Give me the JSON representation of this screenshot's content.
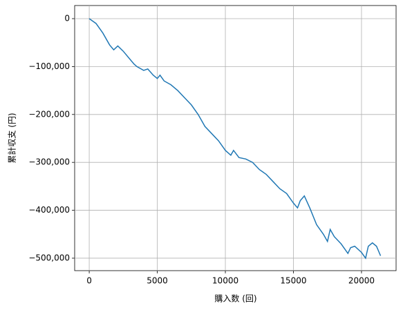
{
  "chart_data": {
    "type": "line",
    "xlabel": "購入数 (回)",
    "ylabel": "累計収支 (円)",
    "x": [
      0,
      500,
      1000,
      1500,
      1800,
      2100,
      2500,
      3000,
      3300,
      3500,
      4000,
      4300,
      4700,
      5000,
      5200,
      5500,
      6000,
      6500,
      7000,
      7500,
      8000,
      8500,
      9000,
      9500,
      10000,
      10400,
      10600,
      11000,
      11500,
      12000,
      12500,
      13000,
      13500,
      14000,
      14500,
      15000,
      15300,
      15500,
      15800,
      16200,
      16700,
      17200,
      17500,
      17700,
      18000,
      18500,
      19000,
      19200,
      19500,
      20000,
      20300,
      20500,
      20800,
      21100,
      21400
    ],
    "values": [
      0,
      -10000,
      -30000,
      -55000,
      -65000,
      -57000,
      -68000,
      -85000,
      -95000,
      -100000,
      -108000,
      -105000,
      -118000,
      -125000,
      -118000,
      -130000,
      -138000,
      -150000,
      -165000,
      -180000,
      -200000,
      -225000,
      -240000,
      -255000,
      -275000,
      -285000,
      -275000,
      -290000,
      -293000,
      -300000,
      -315000,
      -325000,
      -340000,
      -355000,
      -365000,
      -385000,
      -395000,
      -380000,
      -370000,
      -395000,
      -430000,
      -450000,
      -465000,
      -440000,
      -455000,
      -470000,
      -490000,
      -478000,
      -475000,
      -488000,
      -500000,
      -475000,
      -468000,
      -475000,
      -495000
    ],
    "color": "#1f77b4",
    "xlim": [
      -1070,
      22540
    ],
    "ylim": [
      -526000,
      27400
    ],
    "xticks": [
      0,
      5000,
      10000,
      15000,
      20000
    ],
    "yticks": [
      0,
      {
        "value": -100000,
        "label": "−100,000"
      },
      {
        "value": -200000,
        "label": "−200,000"
      },
      {
        "value": -300000,
        "label": "−300,000"
      },
      {
        "value": -400000,
        "label": "−400,000"
      },
      {
        "value": -500000,
        "label": "−500,000"
      }
    ],
    "grid": true
  }
}
